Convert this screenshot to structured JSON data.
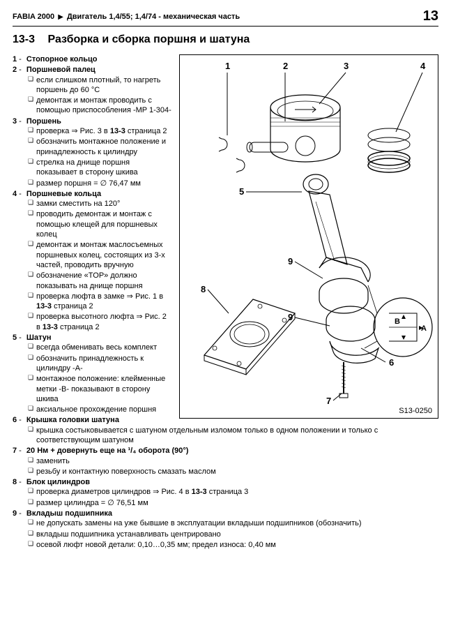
{
  "header": {
    "model": "FABIA 2000",
    "chapter": "Двигатель 1,4/55; 1,4/74 - механическая часть",
    "page": "13"
  },
  "section": {
    "number": "13-3",
    "title": "Разборка и сборка поршня и шатуна"
  },
  "figure": {
    "id": "S13-0250",
    "callouts": [
      "1",
      "2",
      "3",
      "4",
      "5",
      "6",
      "7",
      "8",
      "9"
    ]
  },
  "items": [
    {
      "num": "1",
      "title": "Стопорное кольцо",
      "subs": []
    },
    {
      "num": "2",
      "title": "Поршневой палец",
      "subs": [
        "если слишком плотный, то нагреть поршень до 60 °C",
        "демонтаж и монтаж проводить с помощью приспособления -MP 1-304-"
      ]
    },
    {
      "num": "3",
      "title": "Поршень",
      "subs": [
        "проверка ⇒ Рис. 3 в 13-3 страница 2",
        "обозначить монтажное положение и принадлежность к цилиндру",
        "стрелка на днище поршня показывает в сторону шкива",
        "размер поршня = ∅ 76,47 мм"
      ]
    },
    {
      "num": "4",
      "title": "Поршневые кольца",
      "subs": [
        "замки сместить на 120°",
        "проводить демонтаж и монтаж с помощью клещей для поршневых колец",
        "демонтаж и монтаж маслосъемных поршневых колец, состоящих из 3-х частей, проводить вручную",
        "обозначение «TOP» должно показывать на днище поршня",
        "проверка люфта в замке ⇒ Рис. 1 в 13-3 страница 2",
        "проверка высотного люфта ⇒ Рис. 2 в 13-3 страница 2"
      ]
    },
    {
      "num": "5",
      "title": "Шатун",
      "subs": [
        "всегда обменивать весь комплект",
        "обозначить принадлежность к цилиндру -A-",
        "монтажное положение: клейменные метки -B- показывают в сторону шкива",
        "аксиальное прохождение поршня"
      ]
    },
    {
      "num": "6",
      "title": "Крышка головки шатуна",
      "subs": [
        "крышка состыковывается с шатуном отдельным изломом только в одном положении и только с соответствующим шатуном"
      ]
    },
    {
      "num": "7",
      "title": "20 Нм + довернуть еще на ¹/₄ оборота (90°)",
      "subs": [
        "заменить",
        "резьбу и контактную поверхность смазать маслом"
      ]
    },
    {
      "num": "8",
      "title": "Блок цилиндров",
      "subs": [
        "проверка диаметров цилиндров ⇒ Рис. 4 в 13-3 страница 3",
        "размер цилиндра = ∅ 76,51 мм"
      ]
    },
    {
      "num": "9",
      "title": "Вкладыш подшипника",
      "subs": [
        "не допускать замены на уже бывшие в эксплуатации вкладыши подшипников (обозначить)",
        "вкладыш подшипника устанавливать центрировано",
        "осевой люфт новой детали: 0,10…0,35 мм; предел износа: 0,40 мм"
      ]
    }
  ]
}
